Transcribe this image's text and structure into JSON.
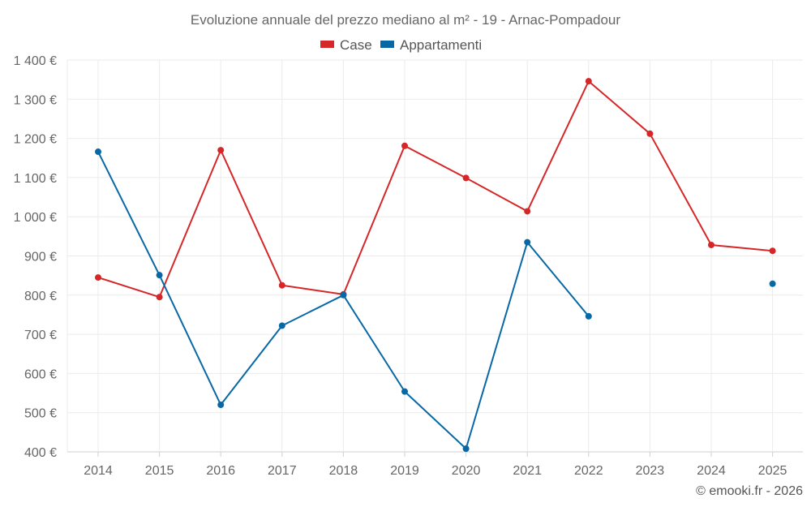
{
  "chart_data": {
    "type": "line",
    "title": "Evoluzione annuale del prezzo mediano al m² - 19 - Arnac-Pompadour",
    "categories": [
      "2014",
      "2015",
      "2016",
      "2017",
      "2018",
      "2019",
      "2020",
      "2021",
      "2022",
      "2023",
      "2024",
      "2025"
    ],
    "series": [
      {
        "name": "Case",
        "color": "#d62728",
        "values": [
          845,
          795,
          1170,
          825,
          802,
          1181,
          1099,
          1014,
          1346,
          1212,
          928,
          913
        ]
      },
      {
        "name": "Appartamenti",
        "color": "#0868a6",
        "values": [
          1166,
          851,
          520,
          722,
          800,
          554,
          408,
          935,
          746,
          null,
          null,
          829
        ]
      }
    ],
    "ylim": [
      400,
      1400
    ],
    "yticks": [
      400,
      500,
      600,
      700,
      800,
      900,
      1000,
      1100,
      1200,
      1300,
      1400
    ],
    "ytick_labels": [
      "400 €",
      "500 €",
      "600 €",
      "700 €",
      "800 €",
      "900 €",
      "1 000 €",
      "1 100 €",
      "1 200 €",
      "1 300 €",
      "1 400 €"
    ],
    "xlabel": "",
    "ylabel": "",
    "grid": true,
    "legend_position": "top-center"
  },
  "footer": "© emooki.fr - 2026"
}
